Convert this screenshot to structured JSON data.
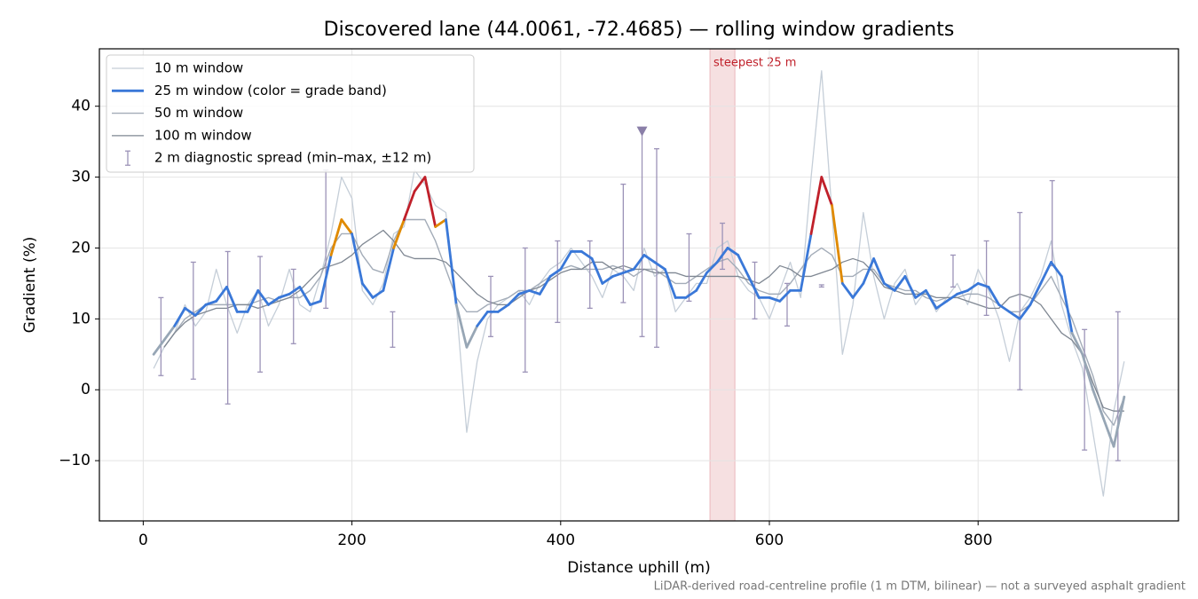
{
  "chart_data": {
    "type": "line",
    "title": "Discovered lane (44.0061, -72.4685) — rolling window gradients",
    "x_label": "Distance uphill (m)",
    "y_label": "Gradient (%)",
    "footnote": "LiDAR-derived road-centreline profile (1 m DTM, bilinear) — not a surveyed asphalt gradient",
    "xlim": [
      -42,
      992
    ],
    "ylim": [
      -18.5,
      48.1
    ],
    "xticks": [
      0,
      200,
      400,
      600,
      800
    ],
    "yticks": [
      {
        "value": -10,
        "label": "−10"
      },
      0,
      10,
      20,
      30,
      40
    ],
    "grid": true,
    "legend": "upper left",
    "x": [
      10,
      20,
      30,
      40,
      50,
      60,
      70,
      80,
      90,
      100,
      110,
      120,
      130,
      140,
      150,
      160,
      170,
      180,
      190,
      200,
      210,
      220,
      230,
      240,
      250,
      260,
      270,
      280,
      290,
      300,
      310,
      320,
      330,
      340,
      350,
      360,
      370,
      380,
      390,
      400,
      410,
      420,
      430,
      440,
      450,
      460,
      470,
      480,
      490,
      500,
      510,
      520,
      530,
      540,
      550,
      560,
      570,
      580,
      590,
      600,
      610,
      620,
      630,
      640,
      650,
      660,
      670,
      680,
      690,
      700,
      710,
      720,
      730,
      740,
      750,
      760,
      770,
      780,
      790,
      800,
      810,
      820,
      830,
      840,
      850,
      860,
      870,
      880,
      890,
      900,
      910,
      920,
      930,
      940
    ],
    "series": [
      {
        "name": "10 m window",
        "color": "#c5ced8",
        "width": 1.3,
        "values": [
          3,
          6,
          8,
          12,
          9,
          11,
          17,
          12,
          8,
          12,
          14,
          9,
          12,
          17,
          12,
          11,
          16,
          22,
          30,
          27,
          14,
          12,
          15,
          22,
          23,
          31,
          29,
          26,
          25,
          12,
          -6,
          4,
          10,
          12,
          13,
          14,
          12,
          15,
          17,
          18,
          20,
          18,
          16,
          13,
          17,
          16,
          14,
          20,
          16,
          17,
          11,
          13,
          15,
          15,
          20,
          21,
          16,
          14,
          13,
          10,
          14,
          18,
          13,
          30,
          45,
          25,
          5,
          12,
          25,
          16,
          10,
          15,
          17,
          12,
          14,
          11,
          13,
          15,
          12,
          17,
          14,
          10,
          4,
          11,
          13,
          16,
          21,
          12,
          7,
          3,
          -6,
          -15,
          -3,
          4
        ]
      },
      {
        "name": "25 m window (color = grade band)",
        "color": "#3a78d8",
        "width": 2.8,
        "grade_band_edges": [
          10,
          20,
          25
        ],
        "grade_band_colors": [
          "#97a6b5",
          "#3a78d8",
          "#e08a00",
          "#c0202a"
        ],
        "values": [
          5,
          7,
          9,
          11.5,
          10.5,
          12,
          12.5,
          14.5,
          11,
          11,
          14,
          12,
          13,
          13.5,
          14.5,
          12,
          12.5,
          19,
          24,
          22,
          15,
          13,
          14,
          20,
          24,
          28,
          30,
          23,
          24,
          12,
          6,
          9,
          11,
          11,
          12,
          13.5,
          14,
          13.5,
          16,
          17,
          19.5,
          19.5,
          18.5,
          15,
          16,
          16.5,
          17,
          19,
          18,
          17,
          13,
          13,
          14,
          16.5,
          18,
          20,
          19,
          16,
          13,
          13,
          12.5,
          14,
          14,
          22,
          30,
          26,
          15,
          13,
          15,
          18.5,
          15,
          14,
          16,
          13,
          14,
          11.5,
          12.5,
          13.5,
          14,
          15,
          14.5,
          12,
          11,
          10,
          12,
          15,
          18,
          16,
          8,
          5,
          0,
          -4,
          -8,
          -1
        ]
      },
      {
        "name": "50 m window",
        "color": "#a3acb8",
        "width": 1.4,
        "values": [
          null,
          6,
          8,
          10,
          11,
          12,
          12,
          12,
          12,
          12,
          12.5,
          13,
          12.5,
          13,
          13,
          14,
          16,
          20,
          22,
          22,
          19,
          17,
          16.5,
          21,
          24,
          24,
          24,
          21,
          17,
          13,
          11,
          11,
          12,
          12.5,
          13,
          14,
          14,
          15,
          16,
          17,
          17.5,
          17,
          17,
          17,
          17.5,
          17,
          16,
          17,
          17,
          16,
          15,
          15,
          16,
          17,
          18,
          18.5,
          17,
          15,
          14,
          13.5,
          13.5,
          15,
          17,
          19,
          20,
          19,
          16,
          16,
          17,
          17,
          15,
          14.5,
          14,
          14,
          13,
          12.5,
          13,
          13,
          13.5,
          13.5,
          13,
          12,
          11,
          11,
          12,
          14,
          16,
          13,
          10,
          6,
          2,
          -3,
          -5,
          -1
        ]
      },
      {
        "name": "100 m window",
        "color": "#7f8792",
        "width": 1.3,
        "values": [
          null,
          6,
          8,
          9.5,
          10.5,
          11,
          11.5,
          11.5,
          12,
          12,
          11.5,
          12,
          12.5,
          13,
          14,
          15.5,
          17,
          17.5,
          18,
          19,
          20.5,
          21.5,
          22.5,
          21,
          19,
          18.5,
          18.5,
          18.5,
          18,
          16.5,
          15,
          13.5,
          12.5,
          12,
          12,
          13,
          14,
          14.5,
          15.5,
          16.5,
          17,
          17,
          18,
          18,
          17,
          17.5,
          17,
          17,
          16.5,
          16.5,
          16.5,
          16,
          16,
          16,
          16,
          16,
          16,
          15.5,
          15,
          16,
          17.5,
          17,
          16,
          16,
          16.5,
          17,
          18,
          18.5,
          18,
          16.5,
          14.5,
          14,
          13.5,
          13.5,
          13.5,
          13,
          13,
          13,
          12.5,
          12,
          11.5,
          11.5,
          13,
          13.5,
          13,
          12,
          10,
          8,
          7,
          5,
          1,
          -2.5,
          -3,
          -3
        ]
      }
    ],
    "errorbars": {
      "name": "2 m diagnostic spread (min–max, ±12 m)",
      "color": "#9c93b8",
      "x": [
        17,
        48,
        81,
        112,
        144,
        175,
        239,
        333,
        366,
        397,
        428,
        460,
        478,
        492,
        523,
        555,
        586,
        617,
        650,
        776,
        808,
        840,
        871,
        902,
        934
      ],
      "high": [
        13,
        18,
        19.5,
        18.8,
        17,
        31,
        11,
        16,
        20,
        21,
        21,
        29,
        36.5,
        34,
        22,
        23.5,
        18,
        15,
        14.8,
        19,
        21,
        25,
        29.5,
        8.5,
        11
      ],
      "low": [
        2,
        1.5,
        -2,
        2.5,
        6.5,
        11.5,
        6,
        7.5,
        2.5,
        9.5,
        11.5,
        12.3,
        7.5,
        6,
        12.5,
        17,
        10,
        9,
        14.5,
        14.5,
        10.5,
        0,
        17.5,
        -8.5,
        -10
      ]
    },
    "markers": {
      "x": [
        478
      ],
      "values": [
        36.5
      ],
      "color": "#8a7fa8",
      "shape": "triangle-down"
    },
    "highlight": {
      "x0": 543,
      "x1": 567,
      "label": "steepest 25 m",
      "color": "#c0202a"
    }
  }
}
